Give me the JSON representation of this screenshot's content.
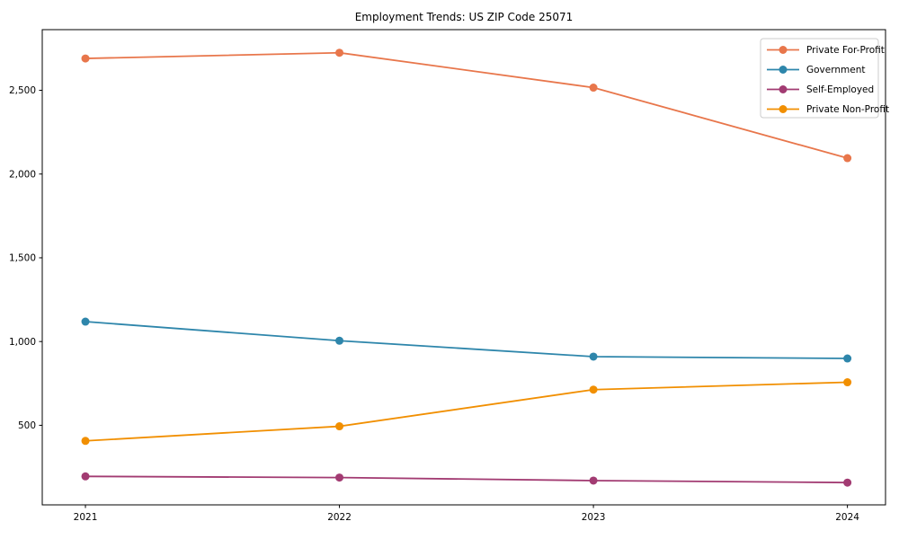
{
  "chart_data": {
    "type": "line",
    "title": "Employment Trends: US ZIP Code 25071",
    "xlabel": "",
    "ylabel": "",
    "x": [
      2021,
      2022,
      2023,
      2024
    ],
    "x_tick_labels": [
      "2021",
      "2022",
      "2023",
      "2024"
    ],
    "y_tick_values": [
      500,
      1000,
      1500,
      2000,
      2500
    ],
    "y_tick_labels": [
      "500",
      "1,000",
      "1,500",
      "2,000",
      "2,500"
    ],
    "xlim": [
      2020.83,
      2024.15
    ],
    "ylim": [
      25,
      2862
    ],
    "grid": false,
    "legend_position": "upper right",
    "series": [
      {
        "name": "Private For-Profit",
        "color": "#E8764B",
        "values": [
          2690,
          2724,
          2516,
          2095
        ]
      },
      {
        "name": "Government",
        "color": "#2E86AB",
        "values": [
          1119,
          1005,
          910,
          899
        ]
      },
      {
        "name": "Self-Employed",
        "color": "#A23B72",
        "values": [
          195,
          188,
          170,
          158
        ]
      },
      {
        "name": "Private Non-Profit",
        "color": "#F18F01",
        "values": [
          407,
          494,
          713,
          757
        ]
      }
    ],
    "axis_color": "#000000",
    "legend_border_color": "#cccccc",
    "background_color": "#ffffff"
  }
}
